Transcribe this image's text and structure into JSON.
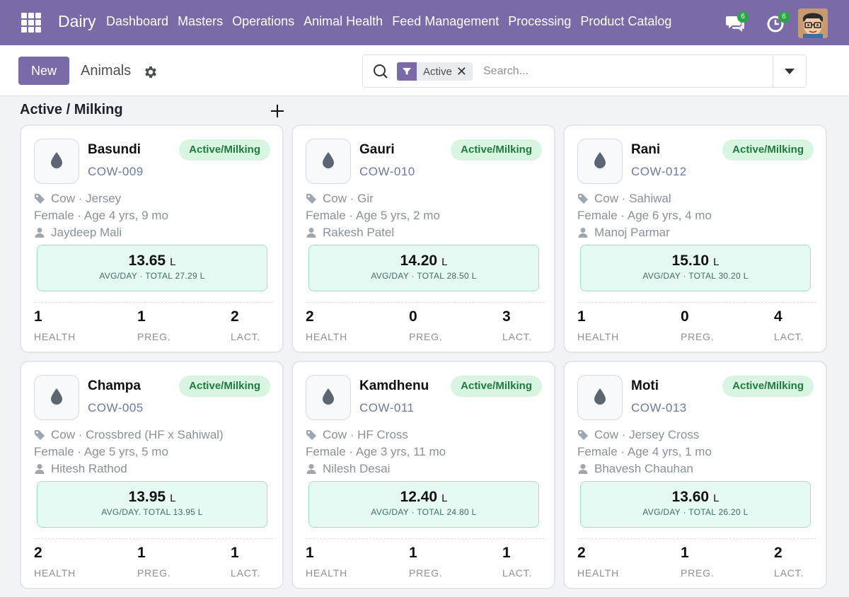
{
  "navbar": {
    "brand": "Dairy",
    "menu": [
      "Dashboard",
      "Masters",
      "Operations",
      "Animal Health",
      "Feed Management",
      "Processing",
      "Product Catalog"
    ],
    "messages_badge": "6",
    "activities_badge": "6",
    "bg_color": "#7b6aa8"
  },
  "control": {
    "new_label": "New",
    "breadcrumb": "Animals",
    "facet_label": "Active",
    "search_placeholder": "Search..."
  },
  "group": {
    "title": "Active / Milking"
  },
  "labels": {
    "health": "HEALTH",
    "preg": "PREG.",
    "lact": "LACT."
  },
  "animals": [
    {
      "name": "Basundi",
      "code": "COW-009",
      "status": "Active/Milking",
      "breed": "Cow · Jersey",
      "sex_age": "Female · Age 4 yrs, 9 mo",
      "owner": "Jaydeep Mali",
      "milk_avg": "13.65",
      "milk_unit": "L",
      "milk_sub": "AVG/DAY · TOTAL 27.29 L",
      "health": "1",
      "preg": "1",
      "lact": "2"
    },
    {
      "name": "Gauri",
      "code": "COW-010",
      "status": "Active/Milking",
      "breed": "Cow · Gir",
      "sex_age": "Female · Age 5 yrs, 2 mo",
      "owner": "Rakesh Patel",
      "milk_avg": "14.20",
      "milk_unit": "L",
      "milk_sub": "AVG/DAY · TOTAL 28.50 L",
      "health": "2",
      "preg": "0",
      "lact": "3"
    },
    {
      "name": "Rani",
      "code": "COW-012",
      "status": "Active/Milking",
      "breed": "Cow · Sahiwal",
      "sex_age": "Female · Age 6 yrs, 4 mo",
      "owner": "Manoj Parmar",
      "milk_avg": "15.10",
      "milk_unit": "L",
      "milk_sub": "AVG/DAY · TOTAL 30.20 L",
      "health": "1",
      "preg": "0",
      "lact": "4"
    },
    {
      "name": "Champa",
      "code": "COW-005",
      "status": "Active/Milking",
      "breed": "Cow · Crossbred (HF x Sahiwal)",
      "sex_age": "Female · Age 5 yrs, 5 mo",
      "owner": "Hitesh Rathod",
      "milk_avg": "13.95",
      "milk_unit": "L",
      "milk_sub": "AVG/DAY. TOTAL 13.95 L",
      "health": "2",
      "preg": "1",
      "lact": "1"
    },
    {
      "name": "Kamdhenu",
      "code": "COW-011",
      "status": "Active/Milking",
      "breed": "Cow · HF Cross",
      "sex_age": "Female · Age  3 yrs, 11 mo",
      "owner": "Nilesh Desai",
      "milk_avg": "12.40",
      "milk_unit": "L",
      "milk_sub": "AVG/DAY · TOTAL 24.80 L",
      "health": "1",
      "preg": "1",
      "lact": "1"
    },
    {
      "name": "Moti",
      "code": "COW-013",
      "status": "Active/Milking",
      "breed": "Cow · Jersey Cross",
      "sex_age": "Female · Age 4 yrs, 1 mo",
      "owner": "Bhavesh Chauhan",
      "milk_avg": "13.60",
      "milk_unit": "L",
      "milk_sub": "AVG/DAY · TOTAL 26.20 L",
      "health": "2",
      "preg": "1",
      "lact": "2"
    }
  ]
}
